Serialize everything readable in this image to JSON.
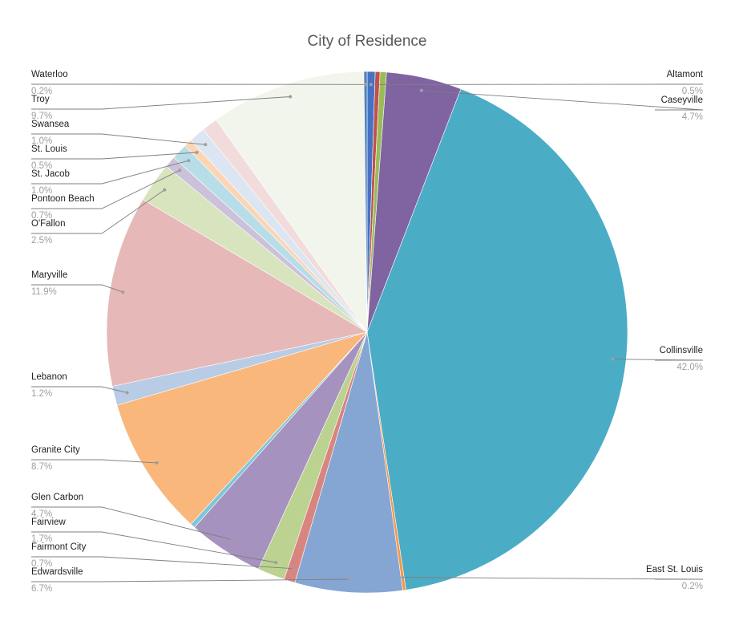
{
  "chart_data": {
    "type": "pie",
    "title": "City of Residence",
    "slices": [
      {
        "label": "Altamont",
        "pct": "0.5%",
        "value": 0.5,
        "color": "#4472C4"
      },
      {
        "label": "",
        "pct": "",
        "value": 0.3,
        "color": "#C0504D"
      },
      {
        "label": "",
        "pct": "",
        "value": 0.4,
        "color": "#9BBB59"
      },
      {
        "label": "Caseyville",
        "pct": "4.7%",
        "value": 4.7,
        "color": "#8064A2"
      },
      {
        "label": "Collinsville",
        "pct": "42.0%",
        "value": 42.0,
        "color": "#4BACC6"
      },
      {
        "label": "East St. Louis",
        "pct": "0.2%",
        "value": 0.2,
        "color": "#F79646"
      },
      {
        "label": "Edwardsville",
        "pct": "6.7%",
        "value": 6.7,
        "color": "#85A6D3"
      },
      {
        "label": "Fairmont City",
        "pct": "0.7%",
        "value": 0.7,
        "color": "#D88580"
      },
      {
        "label": "Fairview",
        "pct": "1.7%",
        "value": 1.7,
        "color": "#BCD290"
      },
      {
        "label": "Glen Carbon",
        "pct": "4.7%",
        "value": 4.7,
        "color": "#A692BF"
      },
      {
        "label": "",
        "pct": "",
        "value": 0.3,
        "color": "#7FC6D8"
      },
      {
        "label": "Granite City",
        "pct": "8.7%",
        "value": 8.7,
        "color": "#F9B77B"
      },
      {
        "label": "Lebanon",
        "pct": "1.2%",
        "value": 1.2,
        "color": "#B9CCE6"
      },
      {
        "label": "Maryville",
        "pct": "11.9%",
        "value": 11.9,
        "color": "#E6B9B8"
      },
      {
        "label": "O'Fallon",
        "pct": "2.5%",
        "value": 2.5,
        "color": "#D7E4BD"
      },
      {
        "label": "Pontoon Beach",
        "pct": "0.7%",
        "value": 0.7,
        "color": "#CCC1DA"
      },
      {
        "label": "St. Jacob",
        "pct": "1.0%",
        "value": 1.0,
        "color": "#B7DEE8"
      },
      {
        "label": "St. Louis",
        "pct": "0.5%",
        "value": 0.5,
        "color": "#FCD5B5"
      },
      {
        "label": "Swansea",
        "pct": "1.0%",
        "value": 1.0,
        "color": "#DCE6F2"
      },
      {
        "label": "",
        "pct": "",
        "value": 1.0,
        "color": "#F2DCDB"
      },
      {
        "label": "Troy",
        "pct": "9.7%",
        "value": 9.7,
        "color": "#F2F5EC"
      },
      {
        "label": "Waterloo",
        "pct": "0.2%",
        "value": 0.2,
        "color": "#4F81BD"
      }
    ],
    "legend": "none"
  }
}
